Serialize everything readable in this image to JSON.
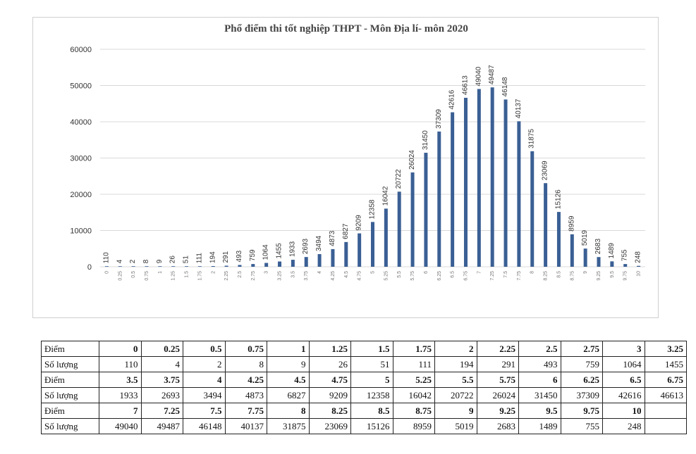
{
  "chart_data": {
    "type": "bar",
    "title": "Phổ điểm thi tốt nghiệp THPT - Môn Địa lí- môn 2020",
    "xlabel": "",
    "ylabel": "",
    "ylim": [
      0,
      60000
    ],
    "yticks": [
      0,
      10000,
      20000,
      30000,
      40000,
      50000,
      60000
    ],
    "categories": [
      "0",
      "0.25",
      "0.5",
      "0.75",
      "1",
      "1.25",
      "1.5",
      "1.75",
      "2",
      "2.25",
      "2.5",
      "2.75",
      "3",
      "3.25",
      "3.5",
      "3.75",
      "4",
      "4.25",
      "4.5",
      "4.75",
      "5",
      "5.25",
      "5.5",
      "5.75",
      "6",
      "6.25",
      "6.5",
      "6.75",
      "7",
      "7.25",
      "7.5",
      "7.75",
      "8",
      "8.25",
      "8.5",
      "8.75",
      "9",
      "9.25",
      "9.5",
      "9.75",
      "10"
    ],
    "values": [
      110,
      4,
      2,
      8,
      9,
      26,
      51,
      111,
      194,
      291,
      493,
      759,
      1064,
      1455,
      1933,
      2693,
      3494,
      4873,
      6827,
      9209,
      12358,
      16042,
      20722,
      26024,
      31450,
      37309,
      42616,
      46613,
      49040,
      49487,
      46148,
      40137,
      31875,
      23069,
      15126,
      8959,
      5019,
      2683,
      1489,
      755,
      248
    ],
    "grid": true,
    "legend": "none"
  },
  "table": {
    "row_label_points": "Điểm",
    "row_label_count": "Số lượng",
    "rows": [
      {
        "points": [
          "0",
          "0.25",
          "0.5",
          "0.75",
          "1",
          "1.25",
          "1.5",
          "1.75",
          "2",
          "2.25",
          "2.5",
          "2.75",
          "3",
          "3.25"
        ],
        "counts": [
          "110",
          "4",
          "2",
          "8",
          "9",
          "26",
          "51",
          "111",
          "194",
          "291",
          "493",
          "759",
          "1064",
          "1455"
        ]
      },
      {
        "points": [
          "3.5",
          "3.75",
          "4",
          "4.25",
          "4.5",
          "4.75",
          "5",
          "5.25",
          "5.5",
          "5.75",
          "6",
          "6.25",
          "6.5",
          "6.75"
        ],
        "counts": [
          "1933",
          "2693",
          "3494",
          "4873",
          "6827",
          "9209",
          "12358",
          "16042",
          "20722",
          "26024",
          "31450",
          "37309",
          "42616",
          "46613"
        ]
      },
      {
        "points": [
          "7",
          "7.25",
          "7.5",
          "7.75",
          "8",
          "8.25",
          "8.5",
          "8.75",
          "9",
          "9.25",
          "9.5",
          "9.75",
          "10",
          ""
        ],
        "counts": [
          "49040",
          "49487",
          "46148",
          "40137",
          "31875",
          "23069",
          "15126",
          "8959",
          "5019",
          "2683",
          "1489",
          "755",
          "248",
          ""
        ]
      }
    ]
  }
}
